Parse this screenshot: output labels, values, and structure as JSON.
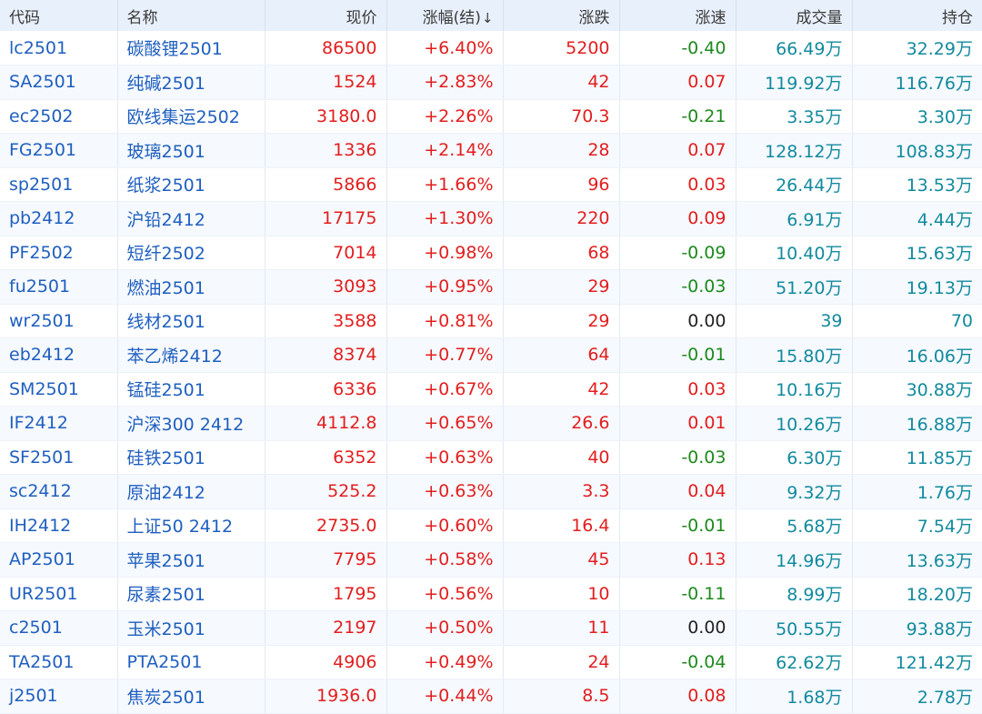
{
  "headers": {
    "code": "代码",
    "name": "名称",
    "price": "现价",
    "pct": "涨幅(结)",
    "sort_arrow": "↓",
    "change": "涨跌",
    "speed": "涨速",
    "volume": "成交量",
    "open_interest": "持仓"
  },
  "colors": {
    "up": "#e21e1e",
    "down": "#1d8a1d",
    "flat": "#222222",
    "link": "#1f5fbf",
    "volume": "#118a9e",
    "header_bg": "#e8f0fb"
  },
  "rows": [
    {
      "code": "lc2501",
      "name": "碳酸锂2501",
      "price": "86500",
      "pct": "+6.40%",
      "change": "5200",
      "speed": "-0.40",
      "speed_dir": "down",
      "volume": "66.49万",
      "oi": "32.29万"
    },
    {
      "code": "SA2501",
      "name": "纯碱2501",
      "price": "1524",
      "pct": "+2.83%",
      "change": "42",
      "speed": "0.07",
      "speed_dir": "up",
      "volume": "119.92万",
      "oi": "116.76万"
    },
    {
      "code": "ec2502",
      "name": "欧线集运2502",
      "price": "3180.0",
      "pct": "+2.26%",
      "change": "70.3",
      "speed": "-0.21",
      "speed_dir": "down",
      "volume": "3.35万",
      "oi": "3.30万"
    },
    {
      "code": "FG2501",
      "name": "玻璃2501",
      "price": "1336",
      "pct": "+2.14%",
      "change": "28",
      "speed": "0.07",
      "speed_dir": "up",
      "volume": "128.12万",
      "oi": "108.83万"
    },
    {
      "code": "sp2501",
      "name": "纸浆2501",
      "price": "5866",
      "pct": "+1.66%",
      "change": "96",
      "speed": "0.03",
      "speed_dir": "up",
      "volume": "26.44万",
      "oi": "13.53万"
    },
    {
      "code": "pb2412",
      "name": "沪铅2412",
      "price": "17175",
      "pct": "+1.30%",
      "change": "220",
      "speed": "0.09",
      "speed_dir": "up",
      "volume": "6.91万",
      "oi": "4.44万"
    },
    {
      "code": "PF2502",
      "name": "短纤2502",
      "price": "7014",
      "pct": "+0.98%",
      "change": "68",
      "speed": "-0.09",
      "speed_dir": "down",
      "volume": "10.40万",
      "oi": "15.63万"
    },
    {
      "code": "fu2501",
      "name": "燃油2501",
      "price": "3093",
      "pct": "+0.95%",
      "change": "29",
      "speed": "-0.03",
      "speed_dir": "down",
      "volume": "51.20万",
      "oi": "19.13万"
    },
    {
      "code": "wr2501",
      "name": "线材2501",
      "price": "3588",
      "pct": "+0.81%",
      "change": "29",
      "speed": "0.00",
      "speed_dir": "flat",
      "volume": "39",
      "oi": "70"
    },
    {
      "code": "eb2412",
      "name": "苯乙烯2412",
      "price": "8374",
      "pct": "+0.77%",
      "change": "64",
      "speed": "-0.01",
      "speed_dir": "down",
      "volume": "15.80万",
      "oi": "16.06万"
    },
    {
      "code": "SM2501",
      "name": "锰硅2501",
      "price": "6336",
      "pct": "+0.67%",
      "change": "42",
      "speed": "0.03",
      "speed_dir": "up",
      "volume": "10.16万",
      "oi": "30.88万"
    },
    {
      "code": "IF2412",
      "name": "沪深300 2412",
      "price": "4112.8",
      "pct": "+0.65%",
      "change": "26.6",
      "speed": "0.01",
      "speed_dir": "up",
      "volume": "10.26万",
      "oi": "16.88万"
    },
    {
      "code": "SF2501",
      "name": "硅铁2501",
      "price": "6352",
      "pct": "+0.63%",
      "change": "40",
      "speed": "-0.03",
      "speed_dir": "down",
      "volume": "6.30万",
      "oi": "11.85万"
    },
    {
      "code": "sc2412",
      "name": "原油2412",
      "price": "525.2",
      "pct": "+0.63%",
      "change": "3.3",
      "speed": "0.04",
      "speed_dir": "up",
      "volume": "9.32万",
      "oi": "1.76万"
    },
    {
      "code": "IH2412",
      "name": "上证50 2412",
      "price": "2735.0",
      "pct": "+0.60%",
      "change": "16.4",
      "speed": "-0.01",
      "speed_dir": "down",
      "volume": "5.68万",
      "oi": "7.54万"
    },
    {
      "code": "AP2501",
      "name": "苹果2501",
      "price": "7795",
      "pct": "+0.58%",
      "change": "45",
      "speed": "0.13",
      "speed_dir": "up",
      "volume": "14.96万",
      "oi": "13.63万"
    },
    {
      "code": "UR2501",
      "name": "尿素2501",
      "price": "1795",
      "pct": "+0.56%",
      "change": "10",
      "speed": "-0.11",
      "speed_dir": "down",
      "volume": "8.99万",
      "oi": "18.20万"
    },
    {
      "code": "c2501",
      "name": "玉米2501",
      "price": "2197",
      "pct": "+0.50%",
      "change": "11",
      "speed": "0.00",
      "speed_dir": "flat",
      "volume": "50.55万",
      "oi": "93.88万"
    },
    {
      "code": "TA2501",
      "name": "PTA2501",
      "price": "4906",
      "pct": "+0.49%",
      "change": "24",
      "speed": "-0.04",
      "speed_dir": "down",
      "volume": "62.62万",
      "oi": "121.42万"
    },
    {
      "code": "j2501",
      "name": "焦炭2501",
      "price": "1936.0",
      "pct": "+0.44%",
      "change": "8.5",
      "speed": "0.08",
      "speed_dir": "up",
      "volume": "1.68万",
      "oi": "2.78万"
    }
  ]
}
